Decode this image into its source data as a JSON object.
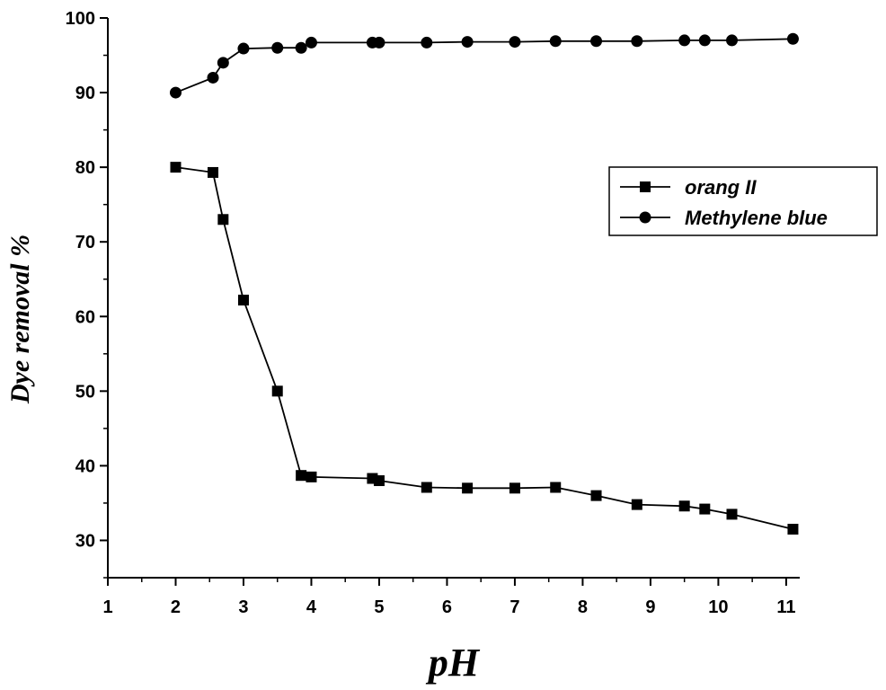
{
  "chart_data": {
    "type": "line",
    "title": "",
    "xlabel": "pH",
    "ylabel": "Dye removal %",
    "xlim": [
      1,
      11.2
    ],
    "ylim": [
      25,
      100
    ],
    "x_ticks": [
      1,
      2,
      3,
      4,
      5,
      6,
      7,
      8,
      9,
      10,
      11
    ],
    "y_ticks": [
      30,
      40,
      50,
      60,
      70,
      80,
      90,
      100
    ],
    "grid": false,
    "legend_position": "right",
    "series": [
      {
        "name": "orang II",
        "marker": "square",
        "color": "#000000",
        "x": [
          2,
          2.55,
          2.7,
          3,
          3.5,
          3.85,
          4,
          4.9,
          5,
          5.7,
          6.3,
          7,
          7.6,
          8.2,
          8.8,
          9.5,
          9.8,
          10.2,
          11.1
        ],
        "y": [
          80,
          79.3,
          73,
          62.2,
          50,
          38.7,
          38.5,
          38.3,
          38,
          37.1,
          37,
          37,
          37.1,
          36,
          34.8,
          34.6,
          34.2,
          33.5,
          31.5
        ]
      },
      {
        "name": "Methylene blue",
        "marker": "circle",
        "color": "#000000",
        "x": [
          2,
          2.55,
          2.7,
          3,
          3.5,
          3.85,
          4,
          4.9,
          5,
          5.7,
          6.3,
          7,
          7.6,
          8.2,
          8.8,
          9.5,
          9.8,
          10.2,
          11.1
        ],
        "y": [
          90,
          92,
          94,
          95.9,
          96,
          96,
          96.7,
          96.7,
          96.7,
          96.7,
          96.8,
          96.8,
          96.9,
          96.9,
          96.9,
          97,
          97,
          97,
          97.2
        ]
      }
    ]
  }
}
